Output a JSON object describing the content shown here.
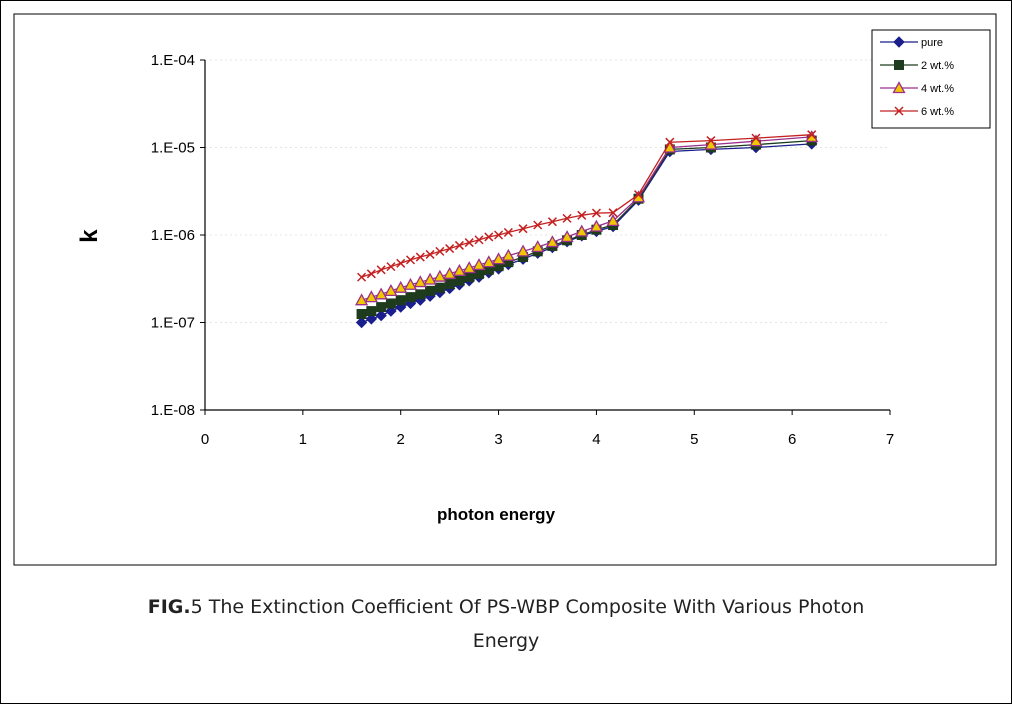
{
  "chart_data": {
    "type": "scatter",
    "xlabel": "photon energy",
    "ylabel": "k",
    "xlim": [
      0,
      7
    ],
    "ylim": [
      1e-08,
      0.0001
    ],
    "y_scale": "log",
    "x_ticks": [
      "0",
      "1",
      "2",
      "3",
      "4",
      "5",
      "6",
      "7"
    ],
    "y_ticks": [
      "1.E-08",
      "1.E-07",
      "1.E-06",
      "1.E-05",
      "1.E-04"
    ],
    "legend_position": "top-right",
    "series": [
      {
        "name": "pure",
        "color": "#1a1f8c",
        "marker": "diamond",
        "x": [
          1.6,
          1.7,
          1.8,
          1.9,
          2.0,
          2.1,
          2.2,
          2.3,
          2.4,
          2.5,
          2.6,
          2.7,
          2.8,
          2.9,
          3.0,
          3.1,
          3.25,
          3.4,
          3.55,
          3.7,
          3.85,
          4.0,
          4.17,
          4.43,
          4.75,
          5.17,
          5.63,
          6.2
        ],
        "y": [
          1e-07,
          1.1e-07,
          1.2e-07,
          1.35e-07,
          1.5e-07,
          1.65e-07,
          1.8e-07,
          2e-07,
          2.2e-07,
          2.45e-07,
          2.7e-07,
          3e-07,
          3.3e-07,
          3.7e-07,
          4.1e-07,
          4.6e-07,
          5.3e-07,
          6.2e-07,
          7.2e-07,
          8.4e-07,
          9.8e-07,
          1.1e-06,
          1.25e-06,
          2.5e-06,
          9e-06,
          9.5e-06,
          1e-05,
          1.1e-05
        ]
      },
      {
        "name": "2 wt.%",
        "color": "#1e3b1e",
        "marker": "square",
        "x": [
          1.6,
          1.7,
          1.8,
          1.9,
          2.0,
          2.1,
          2.2,
          2.3,
          2.4,
          2.5,
          2.6,
          2.7,
          2.8,
          2.9,
          3.0,
          3.1,
          3.25,
          3.4,
          3.55,
          3.7,
          3.85,
          4.0,
          4.17,
          4.43,
          4.75,
          5.17,
          5.63,
          6.2
        ],
        "y": [
          1.25e-07,
          1.35e-07,
          1.5e-07,
          1.65e-07,
          1.8e-07,
          1.95e-07,
          2.1e-07,
          2.3e-07,
          2.5e-07,
          2.75e-07,
          3e-07,
          3.3e-07,
          3.6e-07,
          4e-07,
          4.4e-07,
          4.9e-07,
          5.6e-07,
          6.5e-07,
          7.5e-07,
          8.7e-07,
          1e-06,
          1.15e-06,
          1.3e-06,
          2.6e-06,
          9.5e-06,
          1e-05,
          1.08e-05,
          1.2e-05
        ]
      },
      {
        "name": "4 wt.%",
        "color": "#9a2f8c",
        "marker": "triangle",
        "x": [
          1.6,
          1.7,
          1.8,
          1.9,
          2.0,
          2.1,
          2.2,
          2.3,
          2.4,
          2.5,
          2.6,
          2.7,
          2.8,
          2.9,
          3.0,
          3.1,
          3.25,
          3.4,
          3.55,
          3.7,
          3.85,
          4.0,
          4.17,
          4.43,
          4.75,
          5.17,
          5.63,
          6.2
        ],
        "y": [
          1.8e-07,
          1.95e-07,
          2.1e-07,
          2.3e-07,
          2.5e-07,
          2.7e-07,
          2.9e-07,
          3.1e-07,
          3.35e-07,
          3.6e-07,
          3.9e-07,
          4.2e-07,
          4.55e-07,
          4.9e-07,
          5.3e-07,
          5.8e-07,
          6.5e-07,
          7.3e-07,
          8.3e-07,
          9.5e-07,
          1.1e-06,
          1.25e-06,
          1.45e-06,
          2.7e-06,
          1e-05,
          1.08e-05,
          1.18e-05,
          1.32e-05
        ]
      },
      {
        "name": "6 wt.%",
        "color": "#c42020",
        "marker": "x",
        "x": [
          1.6,
          1.7,
          1.8,
          1.9,
          2.0,
          2.1,
          2.2,
          2.3,
          2.4,
          2.5,
          2.6,
          2.7,
          2.8,
          2.9,
          3.0,
          3.1,
          3.25,
          3.4,
          3.55,
          3.7,
          3.85,
          4.0,
          4.17,
          4.43,
          4.75,
          5.17,
          5.63,
          6.2
        ],
        "y": [
          3.3e-07,
          3.6e-07,
          4e-07,
          4.35e-07,
          4.75e-07,
          5.2e-07,
          5.6e-07,
          6e-07,
          6.5e-07,
          7e-07,
          7.6e-07,
          8.2e-07,
          8.8e-07,
          9.5e-07,
          1e-06,
          1.07e-06,
          1.18e-06,
          1.3e-06,
          1.42e-06,
          1.55e-06,
          1.68e-06,
          1.78e-06,
          1.8e-06,
          2.9e-06,
          1.15e-05,
          1.2e-05,
          1.28e-05,
          1.4e-05
        ]
      }
    ]
  },
  "caption": {
    "bold": "FIG.",
    "line1": "5 The Extinction Coefficient  Of PS-WBP Composite With  Various Photon",
    "line2": "Energy"
  }
}
